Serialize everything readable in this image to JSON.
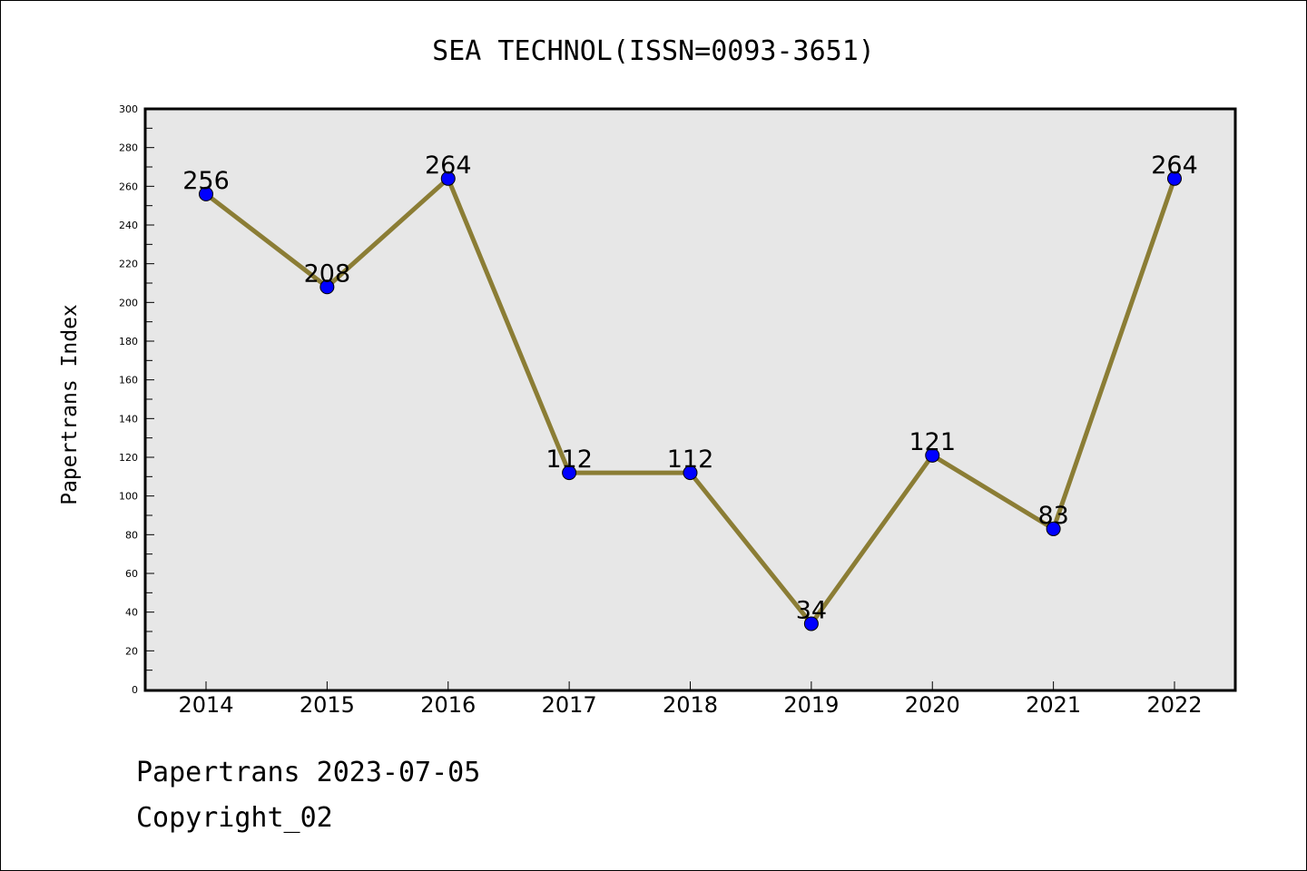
{
  "chart_data": {
    "type": "line",
    "title": "SEA TECHNOL(ISSN=0093-3651)",
    "xlabel": "",
    "ylabel": "Papertrans Index",
    "categories": [
      "2014",
      "2015",
      "2016",
      "2017",
      "2018",
      "2019",
      "2020",
      "2021",
      "2022"
    ],
    "series": [
      {
        "values": [
          256,
          208,
          264,
          112,
          112,
          34,
          121,
          83,
          264
        ]
      }
    ],
    "ylim": [
      0,
      300
    ],
    "yticks": [
      0,
      20,
      40,
      60,
      80,
      100,
      120,
      140,
      160,
      180,
      200,
      220,
      240,
      260,
      280,
      300
    ],
    "grid": false,
    "line_color": "#8b7d35",
    "marker_color": "#0000ff",
    "plot_background": "#e7e7e7"
  },
  "footer": {
    "line1": "Papertrans 2023-07-05",
    "line2": "Copyright_02"
  }
}
